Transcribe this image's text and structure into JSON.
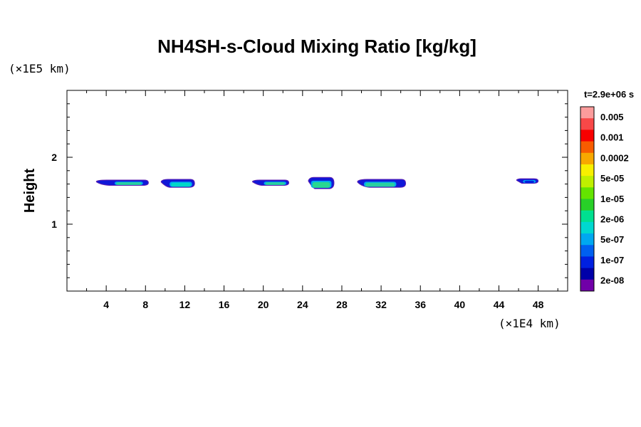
{
  "chart_data": {
    "type": "heatmap",
    "title": "NH4SH-s-Cloud Mixing Ratio [kg/kg]",
    "xlabel": "",
    "ylabel": "Height",
    "x_unit": "(×1E4 km)",
    "y_unit": "(×1E5 km)",
    "time_label": "t=2.9e+06 s",
    "xlim": [
      0,
      51
    ],
    "ylim": [
      0,
      3
    ],
    "x_ticks": [
      4,
      8,
      12,
      16,
      20,
      24,
      28,
      32,
      36,
      40,
      44,
      48
    ],
    "x_tick_labels": [
      "4",
      "8",
      "12",
      "16",
      "20",
      "24",
      "28",
      "32",
      "36",
      "40",
      "44",
      "48"
    ],
    "y_ticks": [
      1,
      2
    ],
    "y_tick_labels": [
      "1",
      "2"
    ],
    "colorbar": {
      "levels": [
        "0.005",
        "0.001",
        "0.0002",
        "5e-05",
        "1e-05",
        "2e-06",
        "5e-07",
        "1e-07",
        "2e-08"
      ],
      "colors": [
        "#fc9c9c",
        "#f84848",
        "#f80000",
        "#f85c00",
        "#f8a800",
        "#f8f000",
        "#c0f000",
        "#64e400",
        "#28d028",
        "#00e090",
        "#00d8d0",
        "#00a8f0",
        "#0060f0",
        "#0020e0",
        "#0000a8",
        "#7000a8"
      ]
    },
    "clouds": [
      {
        "x_start": 3.0,
        "x_end": 8.3,
        "y_bottom": 1.58,
        "y_top": 1.66,
        "core": "#28d0a0",
        "core_x_start": 5.0,
        "core_x_end": 7.6
      },
      {
        "x_start": 9.6,
        "x_end": 13.0,
        "y_bottom": 1.55,
        "y_top": 1.67,
        "core": "#00d8c8",
        "core_x_start": 10.6,
        "core_x_end": 12.6
      },
      {
        "x_start": 18.9,
        "x_end": 22.6,
        "y_bottom": 1.58,
        "y_top": 1.66,
        "core": "#28d0a0",
        "core_x_start": 20.2,
        "core_x_end": 22.2
      },
      {
        "x_start": 24.6,
        "x_end": 27.2,
        "y_bottom": 1.53,
        "y_top": 1.7,
        "core": "#28d890",
        "core_x_start": 25.0,
        "core_x_end": 26.8
      },
      {
        "x_start": 29.6,
        "x_end": 34.5,
        "y_bottom": 1.55,
        "y_top": 1.67,
        "core": "#28d0a0",
        "core_x_start": 30.4,
        "core_x_end": 33.4
      },
      {
        "x_start": 45.8,
        "x_end": 48.0,
        "y_bottom": 1.61,
        "y_top": 1.68,
        "core": "#0020e0",
        "core_x_start": 46.6,
        "core_x_end": 47.6
      }
    ]
  }
}
